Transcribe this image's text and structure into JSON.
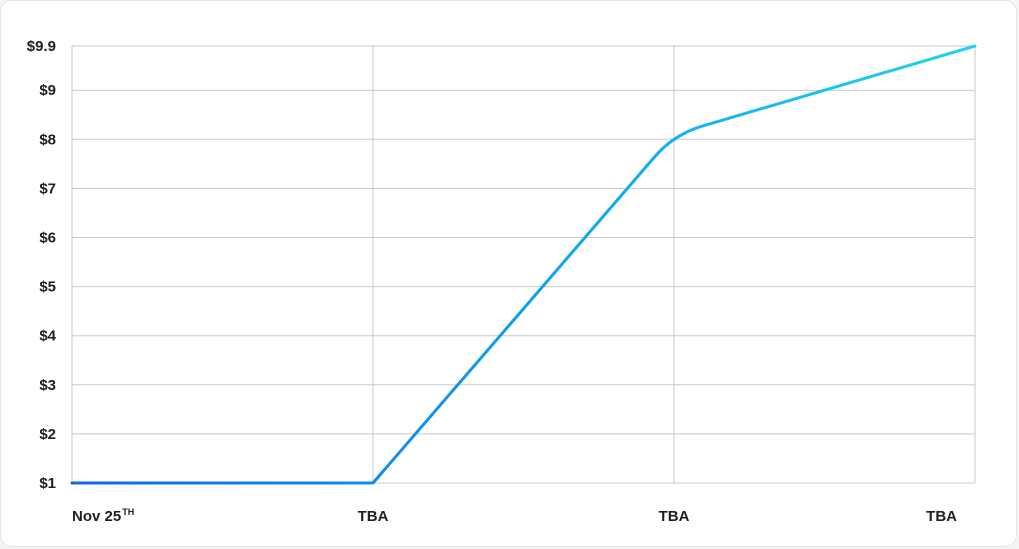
{
  "chart_data": {
    "type": "line",
    "title": "",
    "xlabel": "",
    "ylabel": "",
    "categories": [
      "Nov 25",
      "TBA",
      "TBA",
      "TBA"
    ],
    "category_superscripts": [
      "TH",
      "",
      "",
      ""
    ],
    "series": [
      {
        "values": [
          1,
          1,
          8.1,
          9.9
        ]
      }
    ],
    "ylim": [
      1,
      9.9
    ],
    "y_ticks": [
      1,
      2,
      3,
      4,
      5,
      6,
      7,
      8,
      9,
      9.9
    ],
    "y_tick_labels": [
      "$1",
      "$2",
      "$3",
      "$4",
      "$5",
      "$6",
      "$7",
      "$8",
      "$9",
      "$9.9"
    ],
    "grid": true,
    "legend": "none",
    "colors": {
      "line_start": "#1565e0",
      "line_mid": "#0ea5f0",
      "line_end": "#22d3ee",
      "grid": "#c8c8c8",
      "axis": "#c8c8c8"
    }
  }
}
